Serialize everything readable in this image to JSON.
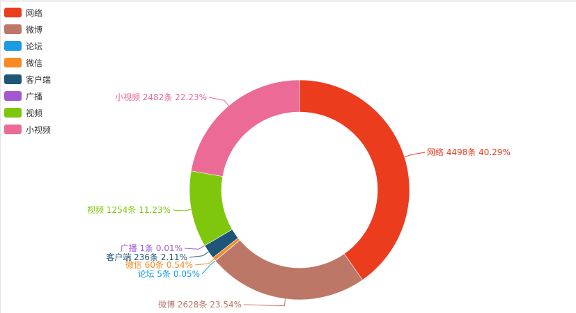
{
  "chart_data": {
    "type": "pie",
    "variant": "donut",
    "categories": [
      "网络",
      "微博",
      "论坛",
      "微信",
      "客户端",
      "广播",
      "视频",
      "小视频"
    ],
    "values": [
      4498,
      2628,
      5,
      60,
      236,
      1,
      1254,
      2482
    ],
    "unit": "条",
    "percents": [
      "40.29%",
      "23.54%",
      "0.05%",
      "0.54%",
      "2.11%",
      "0.01%",
      "11.23%",
      "22.23%"
    ],
    "labels": [
      "网络 4498条  40.29%",
      "微博 2628条  23.54%",
      "论坛 5条  0.05%",
      "微信 60条  0.54%",
      "客户端 236条  2.11%",
      "广播 1条  0.01%",
      "视频 1254条  11.23%",
      "小视频 2482条  22.23%"
    ],
    "colors": [
      "#ec3c1e",
      "#bd7767",
      "#1a9be3",
      "#f68b26",
      "#1e5578",
      "#a259d0",
      "#7fc70d",
      "#ec6a96"
    ],
    "legend_position": "top-left"
  },
  "legend": {
    "items": [
      {
        "label": "网络"
      },
      {
        "label": "微博"
      },
      {
        "label": "论坛"
      },
      {
        "label": "微信"
      },
      {
        "label": "客户端"
      },
      {
        "label": "广播"
      },
      {
        "label": "视频"
      },
      {
        "label": "小视频"
      }
    ]
  }
}
